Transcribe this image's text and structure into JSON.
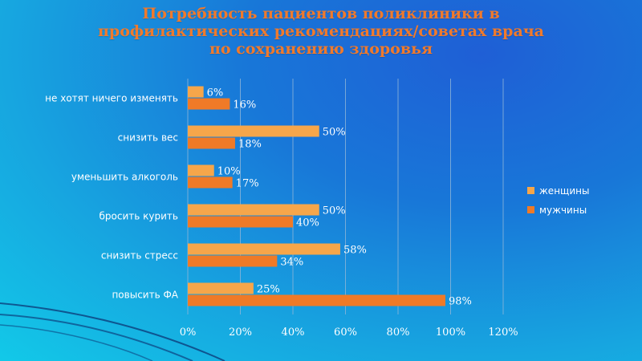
{
  "title_lines": [
    "Потребность пациентов поликлиники в",
    "профилактических рекомендациях/советах врача",
    "по сохранению здоровья"
  ],
  "colors": {
    "women": "#f6a64a",
    "men": "#ef7a27",
    "title": "#f07a2c"
  },
  "chart_data": {
    "type": "bar",
    "orientation": "horizontal",
    "title": "Потребность пациентов поликлиники в профилактических рекомендациях/советах врача по сохранению здоровья",
    "categories": [
      "не хотят ничего изменять",
      "снизить вес",
      "уменьшить алкоголь",
      "бросить курить",
      "снизить стресс",
      "повысить ФА"
    ],
    "series": [
      {
        "name": "женщины",
        "values": [
          6,
          50,
          10,
          50,
          58,
          25
        ],
        "labels": [
          "6%",
          "50%",
          "10%",
          "50%",
          "58%",
          "25%"
        ]
      },
      {
        "name": "мужчины",
        "values": [
          16,
          18,
          17,
          40,
          34,
          98
        ],
        "labels": [
          "16%",
          "18%",
          "17%",
          "40%",
          "34%",
          "98%"
        ]
      }
    ],
    "xlim": [
      0,
      120
    ],
    "xticks": [
      "0%",
      "20%",
      "40%",
      "60%",
      "80%",
      "100%",
      "120%"
    ],
    "grid": true,
    "legend_position": "right"
  }
}
